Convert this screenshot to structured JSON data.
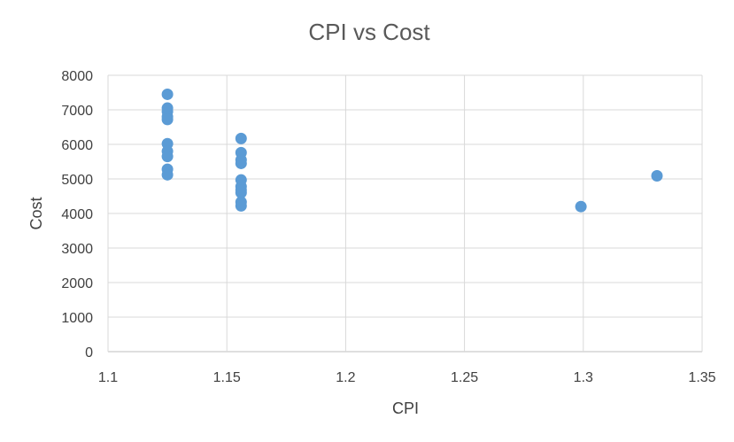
{
  "chart_data": {
    "type": "scatter",
    "title": "CPI vs Cost",
    "xlabel": "CPI",
    "ylabel": "Cost",
    "xlim": [
      1.1,
      1.35
    ],
    "ylim": [
      0,
      8000
    ],
    "x_ticks": [
      "1.1",
      "1.15",
      "1.2",
      "1.25",
      "1.3",
      "1.35"
    ],
    "y_ticks": [
      "0",
      "1000",
      "2000",
      "3000",
      "4000",
      "5000",
      "6000",
      "7000",
      "8000"
    ],
    "grid": true,
    "legend": "none",
    "series": [
      {
        "color": "#5b9bd5",
        "points": [
          [
            1.125,
            7450
          ],
          [
            1.125,
            7050
          ],
          [
            1.125,
            6950
          ],
          [
            1.125,
            6800
          ],
          [
            1.125,
            6720
          ],
          [
            1.125,
            6020
          ],
          [
            1.125,
            5800
          ],
          [
            1.125,
            5650
          ],
          [
            1.125,
            5280
          ],
          [
            1.125,
            5120
          ],
          [
            1.156,
            6170
          ],
          [
            1.156,
            5760
          ],
          [
            1.156,
            5550
          ],
          [
            1.156,
            5450
          ],
          [
            1.156,
            4970
          ],
          [
            1.156,
            4780
          ],
          [
            1.156,
            4680
          ],
          [
            1.156,
            4600
          ],
          [
            1.156,
            4330
          ],
          [
            1.156,
            4220
          ],
          [
            1.299,
            4200
          ],
          [
            1.331,
            5090
          ]
        ]
      }
    ]
  }
}
